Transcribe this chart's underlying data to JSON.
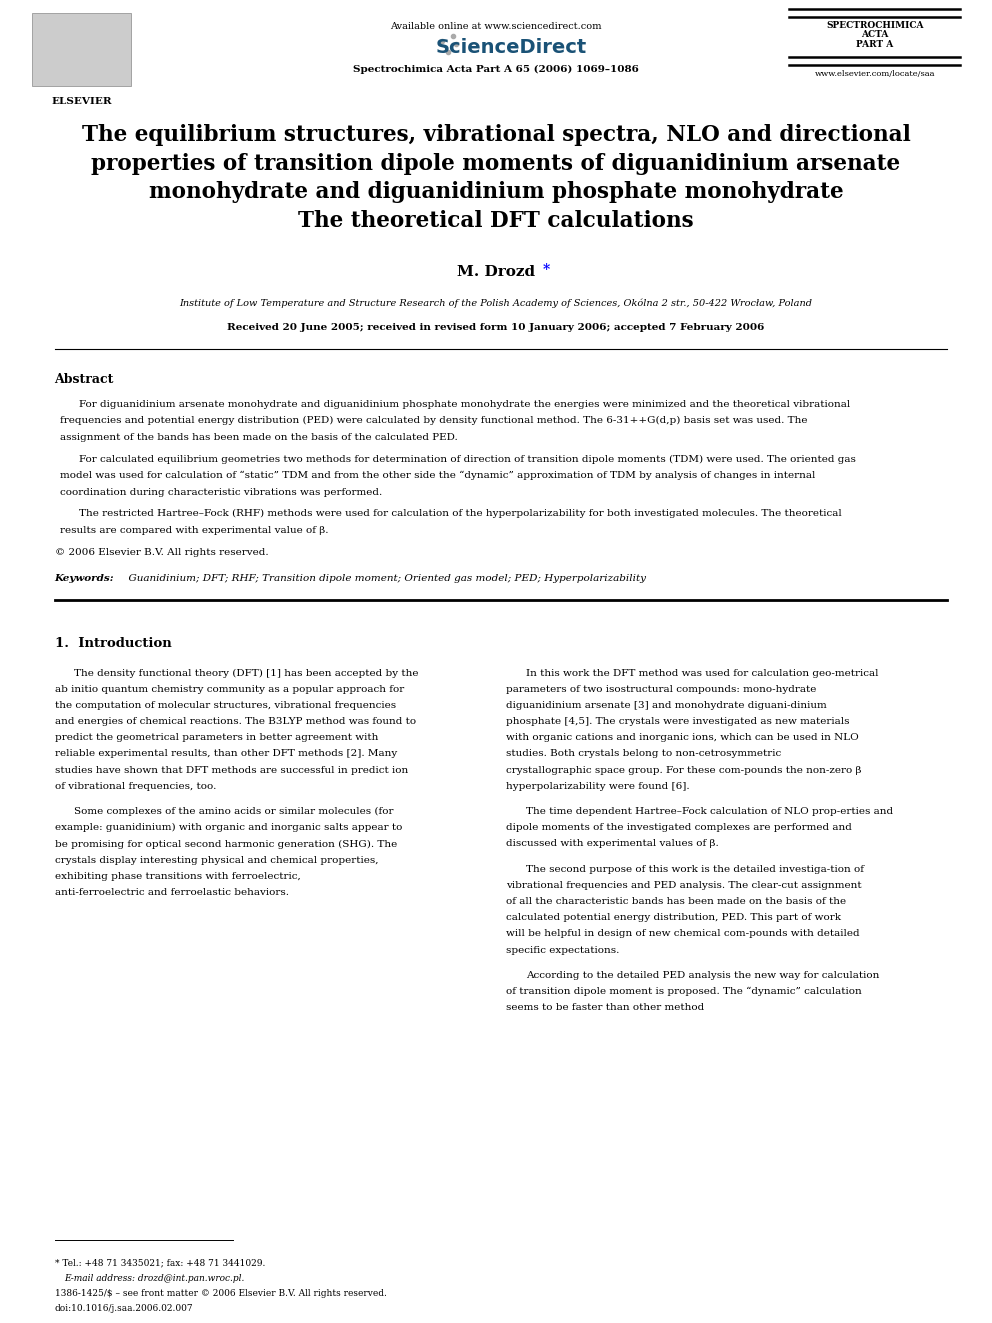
{
  "bg_color": "#ffffff",
  "page_width": 9.92,
  "page_height": 13.23,
  "header": {
    "available_online": "Available online at www.sciencedirect.com",
    "journal_name": "Spectrochimica Acta Part A 65 (2006) 1069–1086",
    "journal_right_line1": "SPECTROCHIMICA",
    "journal_right_line2": "ACTA",
    "journal_right_line3": "PART A",
    "journal_website": "www.elsevier.com/locate/saa",
    "elsevier_label": "ELSEVIER"
  },
  "title_lines": [
    "The equilibrium structures, vibrational spectra, NLO and directional",
    "properties of transition dipole moments of diguanidinium arsenate",
    "monohydrate and diguanidinium phosphate monohydrate",
    "The theoretical DFT calculations"
  ],
  "author_main": "M. Drozd",
  "author_star": "*",
  "affiliation": "Institute of Low Temperature and Structure Research of the Polish Academy of Sciences, Okólna 2 str., 50-422 Wrocław, Poland",
  "received": "Received 20 June 2005; received in revised form 10 January 2006; accepted 7 February 2006",
  "abstract_title": "Abstract",
  "abstract_paragraphs": [
    "For diguanidinium arsenate monohydrate and diguanidinium phosphate monohydrate the energies were minimized and the theoretical vibrational frequencies and potential energy distribution (PED) were calculated by density functional method. The 6-31++G(d,p) basis set was used. The assignment of the bands has been made on the basis of the calculated PED.",
    "For calculated equilibrium geometries two methods for determination of direction of transition dipole moments (TDM) were used. The oriented gas model was used for calculation of “static” TDM and from the other side the “dynamic” approximation of TDM by analysis of changes in internal coordination during characteristic vibrations was performed.",
    "The restricted Hartree–Fock (RHF) methods were used for calculation of the hyperpolarizability for both investigated molecules. The theoretical results are compared with experimental value of β.",
    "© 2006 Elsevier B.V. All rights reserved."
  ],
  "keywords_label": "Keywords:",
  "keywords": "  Guanidinium; DFT; RHF; Transition dipole moment; Oriented gas model; PED; Hyperpolarizability",
  "section1_title": "1.  Introduction",
  "section1_col1_paragraphs": [
    "The density functional theory (DFT) [1] has been accepted by the ab initio quantum chemistry community as a popular approach for the computation of molecular structures, vibrational frequencies and energies of chemical reactions. The B3LYP method was found to predict the geometrical parameters in better agreement with reliable experimental results, than other DFT methods [2]. Many studies have shown that DFT methods are successful in predict ion of vibrational frequencies, too.",
    "Some complexes of the amino acids or similar molecules (for example: guanidinium) with organic and inorganic salts appear to be promising for optical second harmonic generation (SHG). The crystals display interesting physical and chemical properties, exhibiting phase transitions with ferroelectric, anti-ferroelectric and ferroelastic behaviors."
  ],
  "section1_col2_paragraphs": [
    "In this work the DFT method was used for calculation geo-metrical parameters of two isostructural compounds: mono-hydrate diguanidinium arsenate [3] and monohydrate diguani-dinium phosphate [4,5]. The crystals were investigated as new materials with organic cations and inorganic ions, which can be used in NLO studies. Both crystals belong to non-cetrosymmetric crystallographic space group. For these com-pounds the non-zero β hyperpolarizability were found [6].",
    "The time dependent Hartree–Fock calculation of NLO prop-erties and dipole moments of the investigated complexes are performed and discussed with experimental values of β.",
    "The second purpose of this work is the detailed investiga-tion of vibrational frequencies and PED analysis. The clear-cut assignment of all the characteristic bands has been made on the basis of the calculated potential energy distribution, PED. This part of work will be helpful in design of new chemical com-pounds with detailed specific expectations.",
    "According to the detailed PED analysis the new way for calculation of transition dipole moment is proposed. The “dynamic” calculation seems to be faster than other method"
  ],
  "footnote_star": "* Tel.: +48 71 3435021; fax: +48 71 3441029.",
  "footnote_email": "E-mail address: drozd@int.pan.wroc.pl.",
  "footer_issn": "1386-1425/$ – see front matter © 2006 Elsevier B.V. All rights reserved.",
  "footer_doi": "doi:10.1016/j.saa.2006.02.007"
}
